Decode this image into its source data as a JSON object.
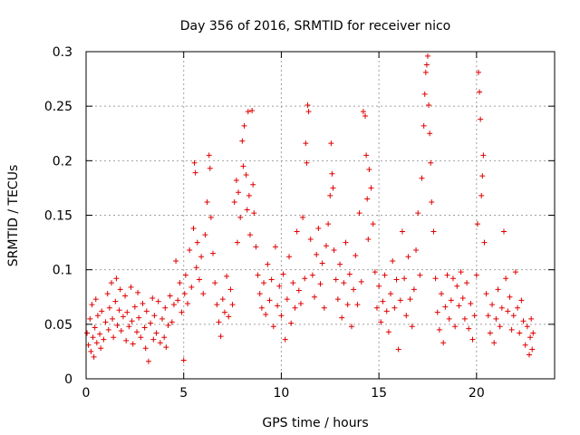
{
  "chart_data": {
    "type": "scatter",
    "title": "Day 356 of 2016, SRMTID for receiver nico",
    "xlabel": "GPS time / hours",
    "ylabel": "SRMTID / TECUs",
    "xlim": [
      0,
      24
    ],
    "ylim": [
      0,
      0.3
    ],
    "xticks": [
      0,
      5,
      10,
      15,
      20
    ],
    "xtick_labels": [
      "0",
      "5",
      "10",
      "15",
      "20"
    ],
    "yticks": [
      0,
      0.05,
      0.1,
      0.15,
      0.2,
      0.25,
      0.3
    ],
    "ytick_labels": [
      "0",
      "0.05",
      "0.1",
      "0.15",
      "0.2",
      "0.25",
      "0.3"
    ],
    "grid": true,
    "marker": "+",
    "series": [
      {
        "name": "SRMTID",
        "color": "#e00000",
        "points": [
          [
            0.05,
            0.042
          ],
          [
            0.12,
            0.031
          ],
          [
            0.2,
            0.055
          ],
          [
            0.25,
            0.025
          ],
          [
            0.3,
            0.068
          ],
          [
            0.35,
            0.038
          ],
          [
            0.4,
            0.02
          ],
          [
            0.45,
            0.047
          ],
          [
            0.5,
            0.073
          ],
          [
            0.55,
            0.033
          ],
          [
            0.6,
            0.058
          ],
          [
            0.7,
            0.041
          ],
          [
            0.75,
            0.028
          ],
          [
            0.8,
            0.062
          ],
          [
            0.9,
            0.036
          ],
          [
            1.0,
            0.052
          ],
          [
            1.1,
            0.078
          ],
          [
            1.15,
            0.045
          ],
          [
            1.2,
            0.065
          ],
          [
            1.3,
            0.088
          ],
          [
            1.35,
            0.055
          ],
          [
            1.4,
            0.038
          ],
          [
            1.5,
            0.071
          ],
          [
            1.55,
            0.092
          ],
          [
            1.6,
            0.049
          ],
          [
            1.7,
            0.063
          ],
          [
            1.75,
            0.082
          ],
          [
            1.8,
            0.044
          ],
          [
            1.9,
            0.057
          ],
          [
            2.0,
            0.076
          ],
          [
            2.05,
            0.035
          ],
          [
            2.1,
            0.061
          ],
          [
            2.2,
            0.048
          ],
          [
            2.3,
            0.084
          ],
          [
            2.35,
            0.053
          ],
          [
            2.4,
            0.032
          ],
          [
            2.5,
            0.066
          ],
          [
            2.6,
            0.043
          ],
          [
            2.65,
            0.079
          ],
          [
            2.7,
            0.056
          ],
          [
            2.8,
            0.038
          ],
          [
            2.9,
            0.069
          ],
          [
            3.0,
            0.047
          ],
          [
            3.05,
            0.028
          ],
          [
            3.1,
            0.062
          ],
          [
            3.2,
            0.016
          ],
          [
            3.3,
            0.051
          ],
          [
            3.4,
            0.074
          ],
          [
            3.45,
            0.036
          ],
          [
            3.5,
            0.058
          ],
          [
            3.6,
            0.042
          ],
          [
            3.7,
            0.071
          ],
          [
            3.8,
            0.033
          ],
          [
            3.9,
            0.055
          ],
          [
            4.0,
            0.038
          ],
          [
            4.05,
            0.065
          ],
          [
            4.1,
            0.029
          ],
          [
            4.2,
            0.049
          ],
          [
            4.3,
            0.076
          ],
          [
            4.4,
            0.052
          ],
          [
            4.5,
            0.068
          ],
          [
            4.6,
            0.108
          ],
          [
            4.7,
            0.072
          ],
          [
            4.8,
            0.088
          ],
          [
            4.9,
            0.061
          ],
          [
            5.0,
            0.017
          ],
          [
            5.05,
            0.078
          ],
          [
            5.1,
            0.095
          ],
          [
            5.2,
            0.069
          ],
          [
            5.3,
            0.118
          ],
          [
            5.4,
            0.084
          ],
          [
            5.5,
            0.138
          ],
          [
            5.55,
            0.198
          ],
          [
            5.6,
            0.189
          ],
          [
            5.65,
            0.102
          ],
          [
            5.7,
            0.125
          ],
          [
            5.8,
            0.091
          ],
          [
            5.9,
            0.112
          ],
          [
            6.0,
            0.078
          ],
          [
            6.1,
            0.132
          ],
          [
            6.2,
            0.162
          ],
          [
            6.3,
            0.205
          ],
          [
            6.35,
            0.193
          ],
          [
            6.4,
            0.148
          ],
          [
            6.5,
            0.115
          ],
          [
            6.6,
            0.088
          ],
          [
            6.7,
            0.068
          ],
          [
            6.8,
            0.052
          ],
          [
            6.9,
            0.039
          ],
          [
            7.0,
            0.073
          ],
          [
            7.1,
            0.061
          ],
          [
            7.2,
            0.094
          ],
          [
            7.3,
            0.057
          ],
          [
            7.4,
            0.082
          ],
          [
            7.5,
            0.068
          ],
          [
            7.6,
            0.162
          ],
          [
            7.7,
            0.182
          ],
          [
            7.75,
            0.125
          ],
          [
            7.8,
            0.171
          ],
          [
            7.9,
            0.148
          ],
          [
            8.0,
            0.218
          ],
          [
            8.05,
            0.195
          ],
          [
            8.1,
            0.232
          ],
          [
            8.2,
            0.187
          ],
          [
            8.25,
            0.155
          ],
          [
            8.3,
            0.245
          ],
          [
            8.35,
            0.168
          ],
          [
            8.4,
            0.132
          ],
          [
            8.5,
            0.246
          ],
          [
            8.55,
            0.178
          ],
          [
            8.6,
            0.152
          ],
          [
            8.7,
            0.121
          ],
          [
            8.8,
            0.095
          ],
          [
            8.9,
            0.078
          ],
          [
            9.0,
            0.065
          ],
          [
            9.1,
            0.088
          ],
          [
            9.2,
            0.059
          ],
          [
            9.3,
            0.105
          ],
          [
            9.4,
            0.072
          ],
          [
            9.5,
            0.091
          ],
          [
            9.6,
            0.048
          ],
          [
            9.7,
            0.121
          ],
          [
            9.8,
            0.067
          ],
          [
            9.9,
            0.085
          ],
          [
            10.0,
            0.058
          ],
          [
            10.1,
            0.096
          ],
          [
            10.2,
            0.036
          ],
          [
            10.3,
            0.073
          ],
          [
            10.4,
            0.112
          ],
          [
            10.5,
            0.051
          ],
          [
            10.6,
            0.088
          ],
          [
            10.7,
            0.065
          ],
          [
            10.8,
            0.135
          ],
          [
            10.9,
            0.081
          ],
          [
            11.0,
            0.069
          ],
          [
            11.1,
            0.148
          ],
          [
            11.2,
            0.092
          ],
          [
            11.25,
            0.216
          ],
          [
            11.3,
            0.198
          ],
          [
            11.35,
            0.251
          ],
          [
            11.4,
            0.245
          ],
          [
            11.5,
            0.128
          ],
          [
            11.6,
            0.095
          ],
          [
            11.7,
            0.075
          ],
          [
            11.8,
            0.114
          ],
          [
            11.9,
            0.138
          ],
          [
            12.0,
            0.087
          ],
          [
            12.1,
            0.106
          ],
          [
            12.2,
            0.065
          ],
          [
            12.3,
            0.122
          ],
          [
            12.4,
            0.142
          ],
          [
            12.5,
            0.168
          ],
          [
            12.55,
            0.216
          ],
          [
            12.6,
            0.188
          ],
          [
            12.65,
            0.175
          ],
          [
            12.7,
            0.118
          ],
          [
            12.8,
            0.091
          ],
          [
            12.9,
            0.073
          ],
          [
            13.0,
            0.105
          ],
          [
            13.1,
            0.056
          ],
          [
            13.2,
            0.088
          ],
          [
            13.3,
            0.125
          ],
          [
            13.4,
            0.068
          ],
          [
            13.5,
            0.096
          ],
          [
            13.6,
            0.048
          ],
          [
            13.7,
            0.082
          ],
          [
            13.8,
            0.113
          ],
          [
            13.9,
            0.068
          ],
          [
            14.0,
            0.152
          ],
          [
            14.1,
            0.089
          ],
          [
            14.2,
            0.245
          ],
          [
            14.3,
            0.241
          ],
          [
            14.35,
            0.205
          ],
          [
            14.4,
            0.165
          ],
          [
            14.45,
            0.128
          ],
          [
            14.5,
            0.192
          ],
          [
            14.6,
            0.175
          ],
          [
            14.7,
            0.142
          ],
          [
            14.8,
            0.098
          ],
          [
            14.9,
            0.065
          ],
          [
            15.0,
            0.085
          ],
          [
            15.1,
            0.052
          ],
          [
            15.2,
            0.071
          ],
          [
            15.3,
            0.095
          ],
          [
            15.4,
            0.062
          ],
          [
            15.5,
            0.043
          ],
          [
            15.6,
            0.078
          ],
          [
            15.7,
            0.108
          ],
          [
            15.8,
            0.065
          ],
          [
            15.9,
            0.091
          ],
          [
            16.0,
            0.027
          ],
          [
            16.1,
            0.072
          ],
          [
            16.2,
            0.135
          ],
          [
            16.3,
            0.092
          ],
          [
            16.4,
            0.058
          ],
          [
            16.5,
            0.112
          ],
          [
            16.6,
            0.073
          ],
          [
            16.7,
            0.048
          ],
          [
            16.8,
            0.082
          ],
          [
            16.9,
            0.118
          ],
          [
            17.0,
            0.152
          ],
          [
            17.1,
            0.095
          ],
          [
            17.2,
            0.184
          ],
          [
            17.3,
            0.232
          ],
          [
            17.35,
            0.261
          ],
          [
            17.4,
            0.281
          ],
          [
            17.45,
            0.288
          ],
          [
            17.5,
            0.296
          ],
          [
            17.55,
            0.251
          ],
          [
            17.6,
            0.225
          ],
          [
            17.65,
            0.198
          ],
          [
            17.7,
            0.162
          ],
          [
            17.8,
            0.135
          ],
          [
            17.9,
            0.092
          ],
          [
            18.0,
            0.061
          ],
          [
            18.1,
            0.045
          ],
          [
            18.2,
            0.078
          ],
          [
            18.3,
            0.033
          ],
          [
            18.4,
            0.066
          ],
          [
            18.5,
            0.095
          ],
          [
            18.6,
            0.055
          ],
          [
            18.7,
            0.072
          ],
          [
            18.8,
            0.092
          ],
          [
            18.9,
            0.048
          ],
          [
            19.0,
            0.085
          ],
          [
            19.1,
            0.067
          ],
          [
            19.2,
            0.098
          ],
          [
            19.3,
            0.074
          ],
          [
            19.4,
            0.055
          ],
          [
            19.5,
            0.088
          ],
          [
            19.6,
            0.046
          ],
          [
            19.7,
            0.069
          ],
          [
            19.8,
            0.036
          ],
          [
            19.9,
            0.058
          ],
          [
            20.0,
            0.095
          ],
          [
            20.05,
            0.142
          ],
          [
            20.1,
            0.281
          ],
          [
            20.15,
            0.263
          ],
          [
            20.2,
            0.238
          ],
          [
            20.25,
            0.168
          ],
          [
            20.3,
            0.186
          ],
          [
            20.35,
            0.205
          ],
          [
            20.4,
            0.125
          ],
          [
            20.5,
            0.078
          ],
          [
            20.6,
            0.058
          ],
          [
            20.7,
            0.042
          ],
          [
            20.8,
            0.068
          ],
          [
            20.9,
            0.033
          ],
          [
            21.0,
            0.055
          ],
          [
            21.1,
            0.082
          ],
          [
            21.2,
            0.048
          ],
          [
            21.3,
            0.065
          ],
          [
            21.4,
            0.135
          ],
          [
            21.5,
            0.092
          ],
          [
            21.6,
            0.062
          ],
          [
            21.7,
            0.075
          ],
          [
            21.8,
            0.045
          ],
          [
            21.9,
            0.058
          ],
          [
            22.0,
            0.098
          ],
          [
            22.1,
            0.065
          ],
          [
            22.2,
            0.042
          ],
          [
            22.3,
            0.072
          ],
          [
            22.4,
            0.053
          ],
          [
            22.5,
            0.031
          ],
          [
            22.6,
            0.048
          ],
          [
            22.7,
            0.022
          ],
          [
            22.75,
            0.038
          ],
          [
            22.8,
            0.055
          ],
          [
            22.85,
            0.027
          ],
          [
            22.9,
            0.042
          ]
        ]
      }
    ]
  }
}
